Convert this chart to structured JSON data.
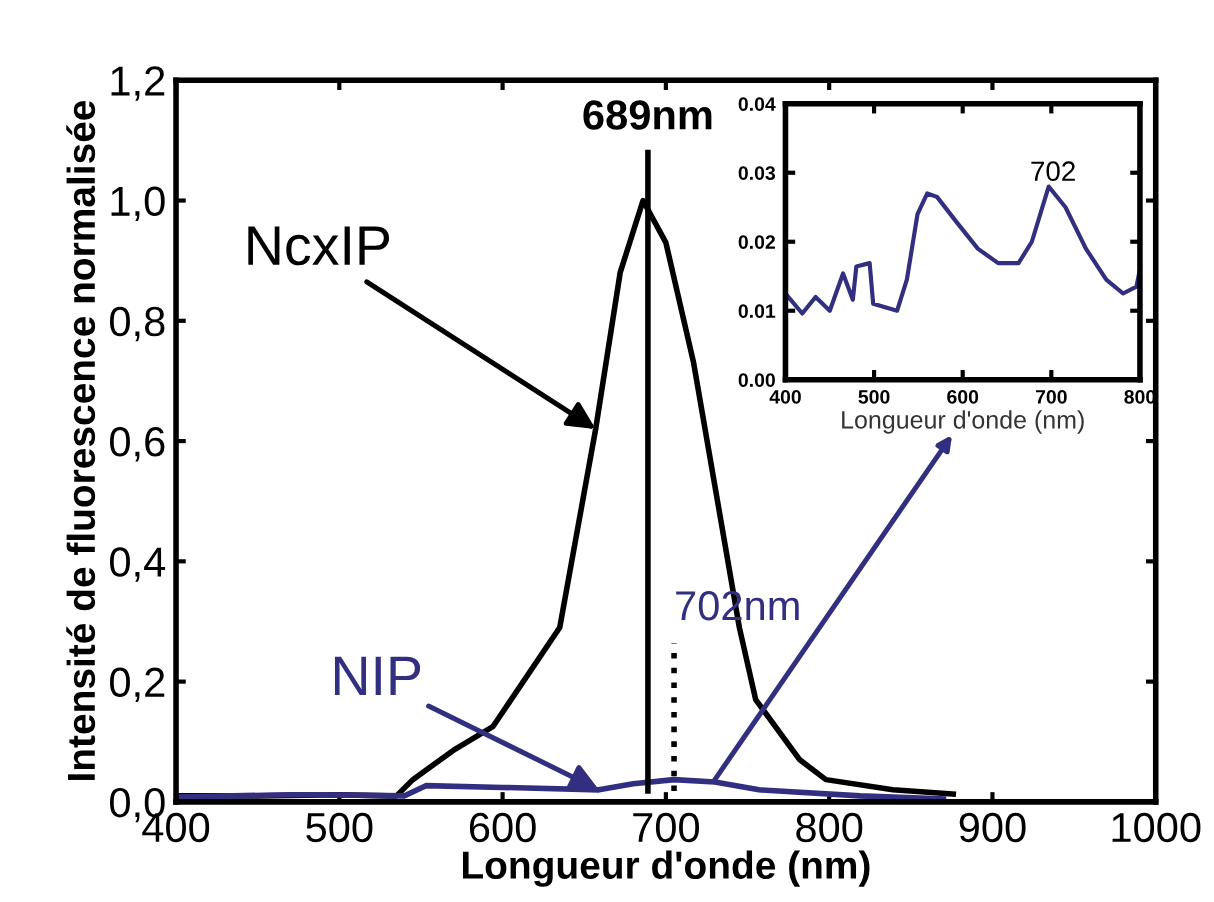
{
  "chart_data": [
    {
      "type": "line",
      "xlabel": "Longueur d'onde (nm)",
      "ylabel": "Intensité de fluorescence normalisée",
      "xlim": [
        400,
        1000
      ],
      "ylim": [
        0,
        1.2
      ],
      "xticks": [
        400,
        500,
        600,
        700,
        800,
        900,
        1000
      ],
      "yticks": [
        {
          "value": 0,
          "label": "0,0"
        },
        {
          "value": 0.2,
          "label": "0,2"
        },
        {
          "value": 0.4,
          "label": "0,4"
        },
        {
          "value": 0.6,
          "label": "0,6"
        },
        {
          "value": 0.8,
          "label": "0,8"
        },
        {
          "value": 1.0,
          "label": "1,0"
        },
        {
          "value": 1.2,
          "label": "1,2"
        }
      ],
      "grid": false,
      "legend": false,
      "marker": "none",
      "line_style": "solid",
      "series": [
        {
          "color": "#000000",
          "x": [
            400,
            450,
            500,
            530,
            535,
            545,
            570,
            594,
            635,
            657,
            672,
            686,
            700,
            717,
            745,
            755,
            782,
            798,
            839,
            876
          ],
          "values": [
            0.01,
            0.01,
            0.012,
            0.01,
            0.01,
            0.037,
            0.086,
            0.125,
            0.29,
            0.62,
            0.88,
            1.0,
            0.93,
            0.73,
            0.29,
            0.17,
            0.07,
            0.037,
            0.02,
            0.013
          ]
        },
        {
          "color": "#332f80",
          "x": [
            400,
            470,
            490,
            540,
            553,
            600,
            659,
            680,
            705,
            730,
            757,
            819,
            870
          ],
          "values": [
            0.008,
            0.012,
            0.012,
            0.01,
            0.027,
            0.024,
            0.02,
            0.03,
            0.037,
            0.033,
            0.02,
            0.01,
            0.005
          ]
        }
      ],
      "ref_lines": [
        {
          "axis": "x",
          "value": 689,
          "color": "#000000",
          "line_style": "solid",
          "label": "689nm"
        },
        {
          "axis": "x",
          "value": 705,
          "color": "#000000",
          "line_style": "dotted",
          "label": "702nm"
        }
      ],
      "annotations": [
        {
          "text": "NcxIP",
          "x": 657,
          "y": 0.62
        },
        {
          "text": "NIP",
          "x": 659,
          "y": 0.02
        }
      ]
    },
    {
      "type": "line",
      "xlabel": "Longueur d'onde (nm)",
      "xlim": [
        400,
        800
      ],
      "ylim": [
        0,
        0.04
      ],
      "xticks": [
        400,
        500,
        600,
        700,
        800
      ],
      "yticks": [
        {
          "value": 0,
          "label": "0.00"
        },
        {
          "value": 0.01,
          "label": "0.01"
        },
        {
          "value": 0.02,
          "label": "0.02"
        },
        {
          "value": 0.03,
          "label": "0.03"
        },
        {
          "value": 0.04,
          "label": "0.04"
        }
      ],
      "grid": false,
      "legend": false,
      "marker": "none",
      "line_style": "solid",
      "series": [
        {
          "color": "#332f80",
          "x": [
            400,
            419,
            434,
            450,
            465,
            476,
            480,
            495,
            499,
            526,
            537,
            549,
            560,
            571,
            594,
            617,
            640,
            663,
            678,
            697,
            716,
            739,
            762,
            781,
            796,
            800
          ],
          "values": [
            0.0125,
            0.0096,
            0.012,
            0.01,
            0.0154,
            0.0116,
            0.0164,
            0.0169,
            0.011,
            0.01,
            0.0145,
            0.024,
            0.027,
            0.0265,
            0.0227,
            0.019,
            0.0169,
            0.0169,
            0.02,
            0.028,
            0.025,
            0.019,
            0.0145,
            0.0125,
            0.0135,
            0.016
          ]
        }
      ],
      "annotations": [
        {
          "text": "702",
          "x": 702,
          "y": 0.028
        }
      ]
    }
  ]
}
